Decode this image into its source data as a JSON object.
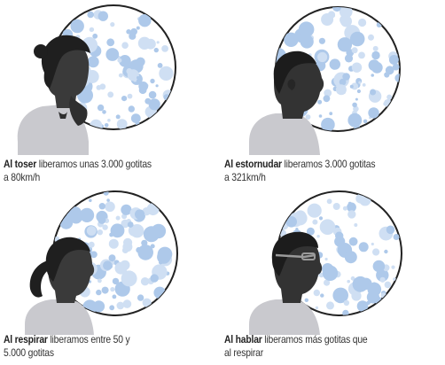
{
  "colors": {
    "bubble_fill": "#aec9ea",
    "bubble_fill_light": "#cfdff3",
    "circle_stroke": "#222222",
    "figure_dark": "#2b2b2b",
    "shirt": "#c9c9ce"
  },
  "panels": [
    {
      "id": "toser",
      "action": "Al toser",
      "line1_rest": " liberamos unas 3.000 gotitas",
      "line2": "a 80km/h"
    },
    {
      "id": "estornudar",
      "action": "Al estornudar",
      "line1_rest": " liberamos  3.000 gotitas",
      "line2": "a 321km/h"
    },
    {
      "id": "respirar",
      "action": "Al respirar",
      "line1_rest": " liberamos entre 50 y",
      "line2": "5.000 gotitas"
    },
    {
      "id": "hablar",
      "action": "Al hablar",
      "line1_rest": " liberamos más gotitas que",
      "line2": "al respirar"
    }
  ]
}
